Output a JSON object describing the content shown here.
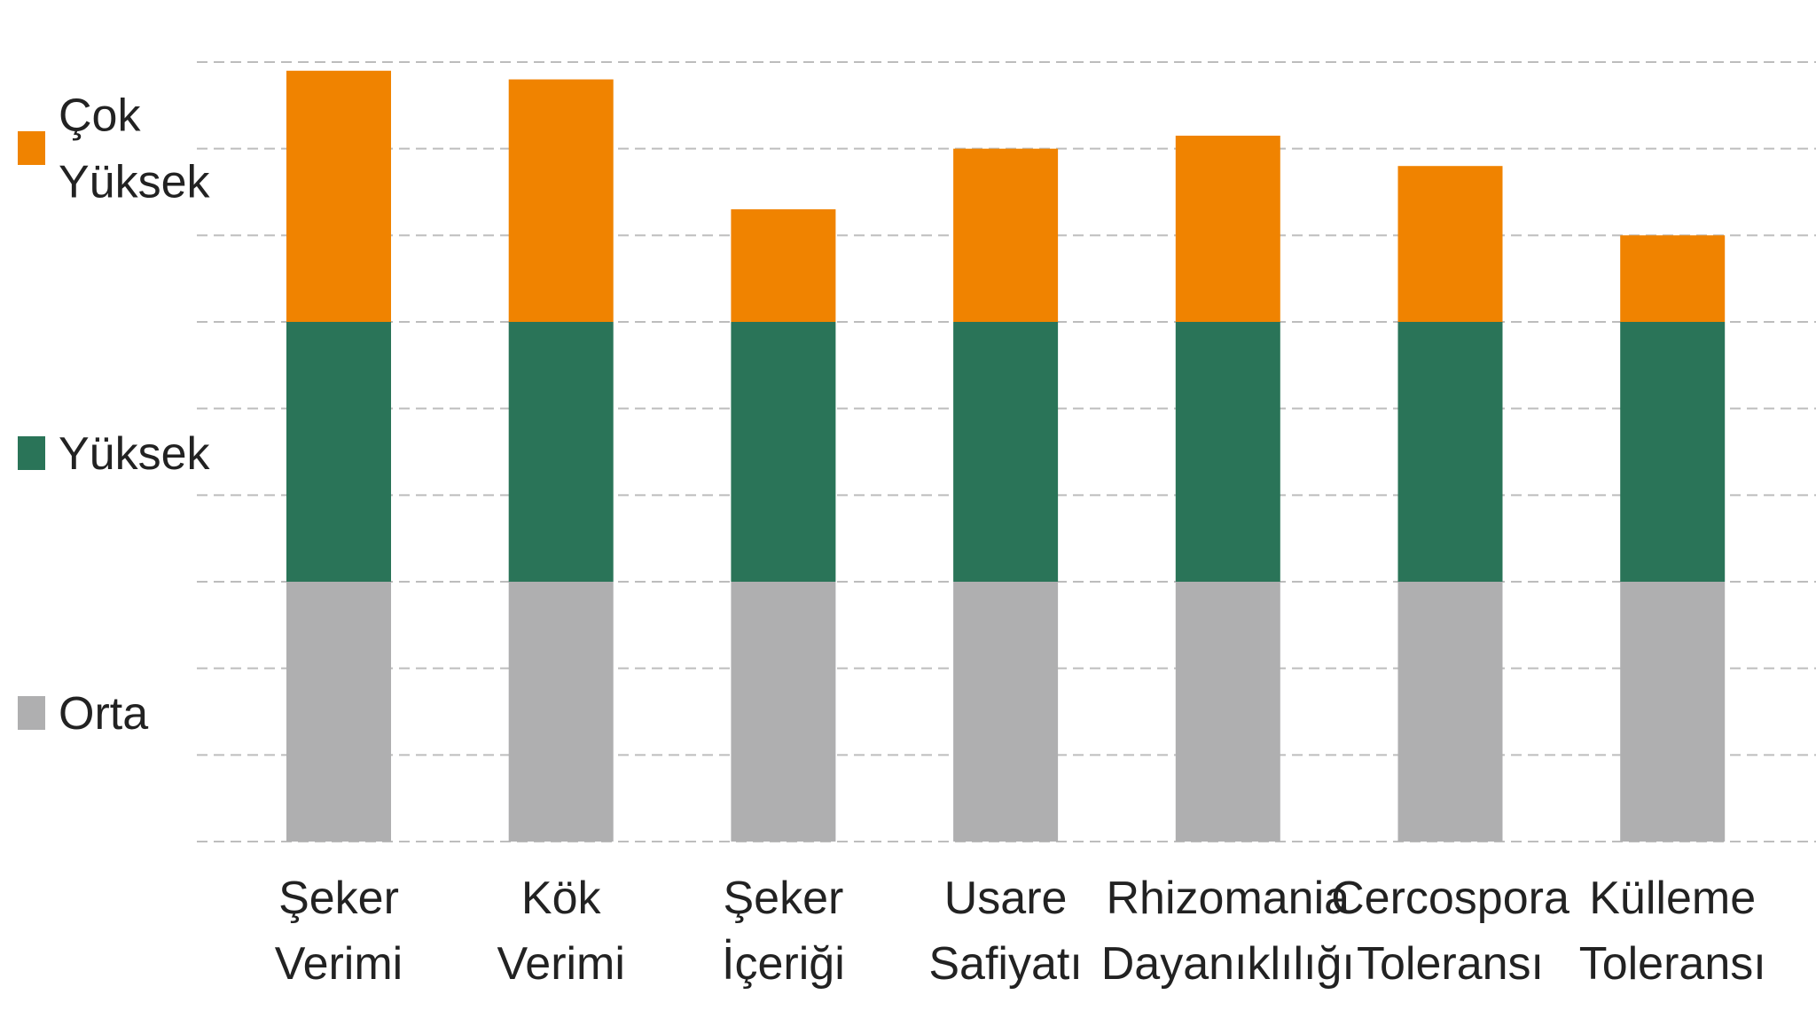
{
  "chart_data": {
    "type": "bar",
    "stacked": true,
    "grid": true,
    "legend_position": "left",
    "ylim": [
      0,
      9
    ],
    "categories": [
      [
        "Şeker",
        "Verimi"
      ],
      [
        "Kök",
        "Verimi"
      ],
      [
        "Şeker",
        "İçeriği"
      ],
      [
        "Usare",
        "Safiyatı"
      ],
      [
        "Rhizomania",
        "Dayanıklılığı"
      ],
      [
        "Cercospora",
        "Toleransı"
      ],
      [
        "Külleme",
        "Toleransı"
      ]
    ],
    "series": [
      {
        "name": "Orta",
        "color": "#afafb0",
        "values": [
          3,
          3,
          3,
          3,
          3,
          3,
          3
        ]
      },
      {
        "name": "Yüksek",
        "color": "#2a7458",
        "values": [
          3,
          3,
          3,
          3,
          3,
          3,
          3
        ]
      },
      {
        "name": [
          "Çok",
          "Yüksek"
        ],
        "color": "#f08300",
        "values": [
          2.9,
          2.8,
          1.3,
          2.0,
          2.15,
          1.8,
          1.0
        ]
      }
    ],
    "legend": [
      {
        "series": 2,
        "label": [
          "Çok",
          "Yüksek"
        ],
        "color": "#f08300"
      },
      {
        "series": 1,
        "label": [
          "Yüksek"
        ],
        "color": "#2a7458"
      },
      {
        "series": 0,
        "label": [
          "Orta"
        ],
        "color": "#afafb0"
      }
    ]
  }
}
